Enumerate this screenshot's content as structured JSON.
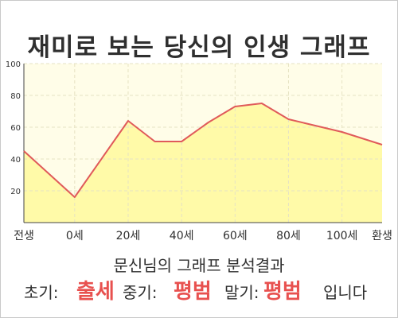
{
  "title": "재미로 보는 당신의 인생 그래프",
  "chart_data": {
    "type": "area",
    "categories": [
      "전생",
      "0세",
      "20세",
      "40세",
      "60세",
      "80세",
      "100세",
      "환생"
    ],
    "x": [
      -19,
      0,
      20,
      30,
      40,
      50,
      60,
      70,
      80,
      90,
      100,
      115
    ],
    "values": [
      45,
      16,
      64,
      51,
      51,
      63,
      73,
      75,
      65,
      61,
      57,
      49
    ],
    "ylim": [
      0,
      100
    ],
    "yticks": [
      100,
      80,
      60,
      40,
      20
    ],
    "grid": true,
    "colors": {
      "line": "#e05a5a",
      "fill": "#fffaa8",
      "plot_bg": "#fffde8",
      "grid": "#e6e2c3",
      "axis": "#444444",
      "tick_text": "#333333"
    }
  },
  "result": {
    "heading": "문신님의 그래프 분석결과",
    "early_label": "초기:",
    "early_value": "출세",
    "mid_label": "중기:",
    "mid_value": "평범",
    "late_label": "말기:",
    "late_value": "평범",
    "suffix": "입니다"
  }
}
